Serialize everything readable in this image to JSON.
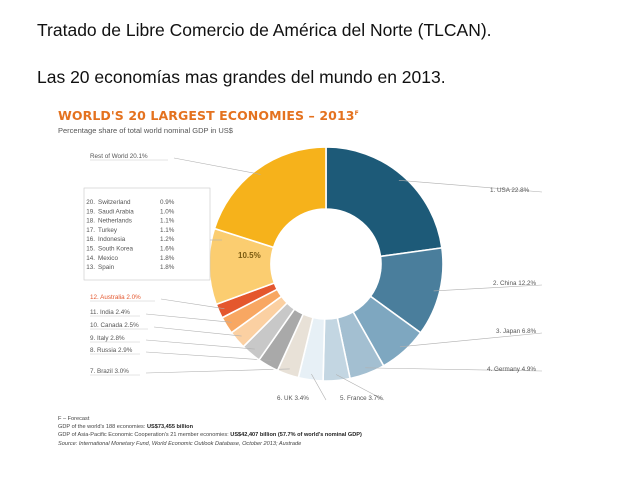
{
  "slide": {
    "heading1": "Tratado de Libre Comercio de América del Norte (TLCAN).",
    "heading2": "Las 20 economías mas grandes del mundo en 2013."
  },
  "chart_data": {
    "type": "pie",
    "title": "WORLD'S 20 LARGEST ECONOMIES – 2013",
    "title_superscript": "F",
    "subtitle": "Percentage share of total world nominal GDP in US$",
    "slices": [
      {
        "label": "1. USA 22.8%",
        "value": 22.8,
        "color": "#1d5a78"
      },
      {
        "label": "2. China 12.2%",
        "value": 12.2,
        "color": "#4a7e9c"
      },
      {
        "label": "3. Japan 6.8%",
        "value": 6.8,
        "color": "#7ea7c0"
      },
      {
        "label": "4. Germany 4.9%",
        "value": 4.9,
        "color": "#a3bfd1"
      },
      {
        "label": "5. France 3.7%",
        "value": 3.7,
        "color": "#c3d6e2"
      },
      {
        "label": "6. UK 3.4%",
        "value": 3.4,
        "color": "#e7f0f6"
      },
      {
        "label": "7. Brazil 3.0%",
        "value": 3.0,
        "color": "#e8e1d7"
      },
      {
        "label": "8. Russia 2.9%",
        "value": 2.9,
        "color": "#a9a9a9"
      },
      {
        "label": "9. Italy 2.8%",
        "value": 2.8,
        "color": "#c8c8c8"
      },
      {
        "label": "10. Canada 2.5%",
        "value": 2.5,
        "color": "#fbd0a2"
      },
      {
        "label": "11. India 2.4%",
        "value": 2.4,
        "color": "#f8a762"
      },
      {
        "label": "12. Australia 2.0%",
        "value": 2.0,
        "color": "#e4572e"
      },
      {
        "label": "10.5%",
        "value": 10.5,
        "color": "#fbcd70"
      },
      {
        "label": "Rest of World 20.1%",
        "value": 20.1,
        "color": "#f6b21b"
      }
    ],
    "group_box": [
      {
        "rank": "20.",
        "name": "Switzerland",
        "value": "0.9%"
      },
      {
        "rank": "19.",
        "name": "Saudi Arabia",
        "value": "1.0%"
      },
      {
        "rank": "18.",
        "name": "Netherlands",
        "value": "1.1%"
      },
      {
        "rank": "17.",
        "name": "Turkey",
        "value": "1.1%"
      },
      {
        "rank": "16.",
        "name": "Indonesia",
        "value": "1.2%"
      },
      {
        "rank": "15.",
        "name": "South Korea",
        "value": "1.6%"
      },
      {
        "rank": "14.",
        "name": "Mexico",
        "value": "1.8%"
      },
      {
        "rank": "13.",
        "name": "Spain",
        "value": "1.8%"
      }
    ]
  },
  "notes": {
    "forecast": "F – Forecast",
    "gdp_world_prefix": "GDP of the world's 188 economies: ",
    "gdp_world_value": "US$73,455 billion",
    "apec_prefix": "GDP of Asia-Pacific Economic Cooperation's 21 member economies: ",
    "apec_value": "US$42,407 billion (57.7% of world's nominal GDP)",
    "source": "Source: International Monetary Fund, World Economic Outlook Database, October 2013; Austrade"
  }
}
